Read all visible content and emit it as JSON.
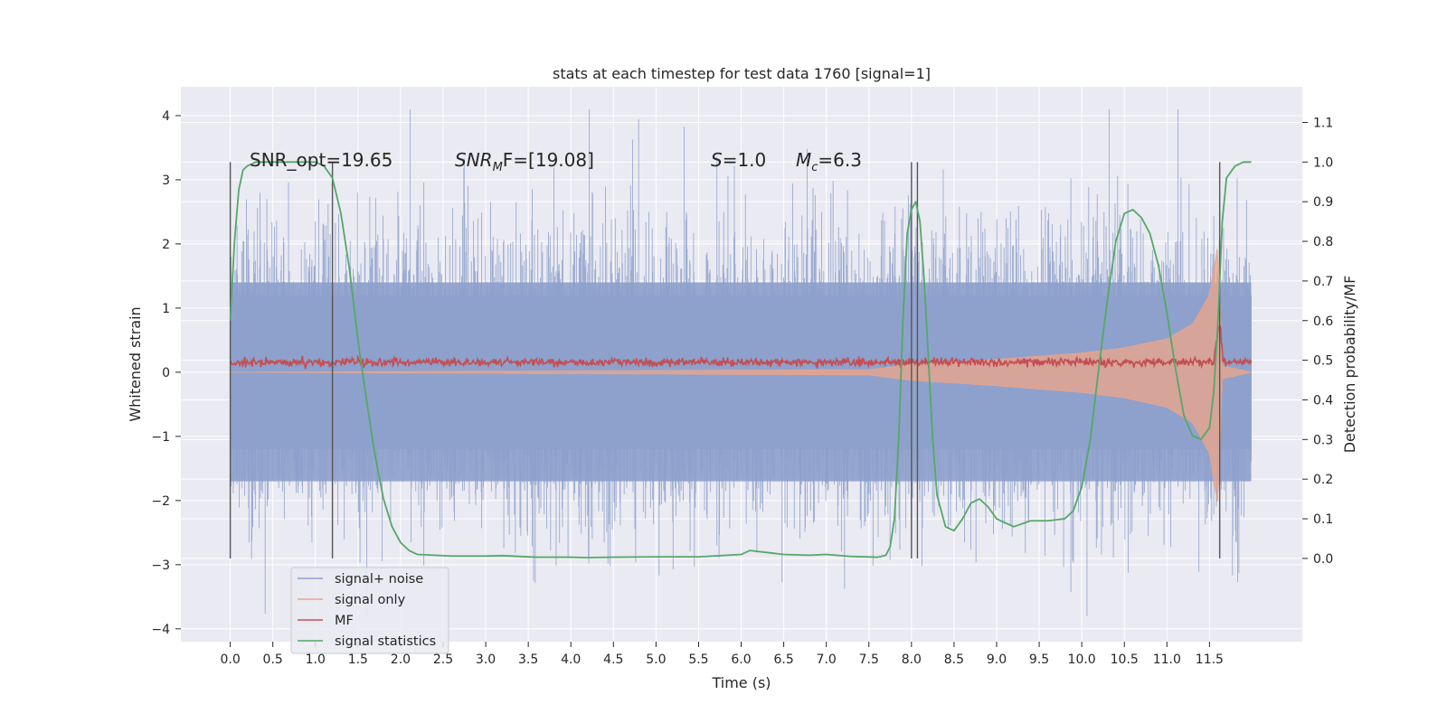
{
  "chart_data": {
    "type": "line",
    "title": "stats at each timestep for test data 1760 [signal=1]",
    "xlabel": "Time (s)",
    "ylabel_left": "Whitened strain",
    "ylabel_right": "Detection probability/MF",
    "xlim": [
      -0.58,
      12.59
    ],
    "ylim_left": [
      -4.2,
      4.45
    ],
    "ylim_right": [
      -0.21,
      1.19
    ],
    "x_ticks": [
      "0.0",
      "0.5",
      "1.0",
      "1.5",
      "2.0",
      "2.5",
      "3.0",
      "3.5",
      "4.0",
      "4.5",
      "5.0",
      "5.5",
      "6.0",
      "6.5",
      "7.0",
      "7.5",
      "8.0",
      "8.5",
      "9.0",
      "9.5",
      "10.0",
      "10.5",
      "11.0",
      "11.5"
    ],
    "y_ticks_left": [
      "4",
      "3",
      "2",
      "1",
      "0",
      "−1",
      "−2",
      "−3",
      "−4"
    ],
    "y_ticks_right": [
      "1.1",
      "1.0",
      "0.9",
      "0.8",
      "0.7",
      "0.6",
      "0.5",
      "0.4",
      "0.3",
      "0.2",
      "0.1",
      "0.0"
    ],
    "grid": true,
    "legend_position": "lower-left",
    "annotations": {
      "snr_opt": "SNR_opt=19.65",
      "snr_mf_sym": "SNR",
      "snr_mf_sub": "M",
      "snr_mf_rest": "F=[19.08]",
      "s_sym": "S",
      "s_val": "=1.0",
      "mc_sym": "M",
      "mc_sub": "c",
      "mc_val": "=6.3"
    },
    "vertical_lines_x": [
      0.0,
      1.2,
      8.0,
      8.07,
      11.62
    ],
    "series": [
      {
        "name": "signal+ noise",
        "color": "#8da0cb",
        "envelope_x": [
          0.0,
          2.0,
          4.0,
          6.0,
          8.0,
          10.0,
          11.99
        ],
        "envelope_y": [
          1.5,
          1.5,
          1.5,
          1.5,
          1.5,
          1.5,
          1.5
        ]
      },
      {
        "name": "signal only",
        "color": "#e8a58c",
        "x": [
          0.0,
          7.5,
          8.0,
          9.0,
          10.0,
          10.5,
          11.0,
          11.3,
          11.5,
          11.6,
          11.65,
          11.99
        ],
        "amplitude": [
          0.0,
          0.04,
          0.12,
          0.2,
          0.3,
          0.38,
          0.52,
          0.75,
          1.2,
          2.0,
          0.1,
          0.0
        ]
      },
      {
        "name": "MF",
        "color": "#c44e52",
        "x": [
          0.0,
          11.55,
          11.62,
          11.66,
          11.7,
          11.99
        ],
        "y": [
          0.495,
          0.495,
          0.6,
          0.5,
          0.495,
          0.495
        ]
      },
      {
        "name": "signal statistics",
        "color": "#55a868",
        "x": [
          0.0,
          0.05,
          0.1,
          0.15,
          0.2,
          0.3,
          0.5,
          0.7,
          0.9,
          1.0,
          1.1,
          1.2,
          1.3,
          1.4,
          1.5,
          1.6,
          1.7,
          1.8,
          1.9,
          2.0,
          2.1,
          2.2,
          2.4,
          2.6,
          2.8,
          3.0,
          3.2,
          3.4,
          3.6,
          3.8,
          4.0,
          4.2,
          4.5,
          5.0,
          5.5,
          6.0,
          6.1,
          6.3,
          6.5,
          6.8,
          7.0,
          7.3,
          7.6,
          7.7,
          7.75,
          7.8,
          7.85,
          7.9,
          7.95,
          8.0,
          8.05,
          8.1,
          8.15,
          8.2,
          8.25,
          8.3,
          8.4,
          8.5,
          8.6,
          8.7,
          8.8,
          8.9,
          9.0,
          9.2,
          9.4,
          9.6,
          9.8,
          9.9,
          10.0,
          10.1,
          10.2,
          10.3,
          10.4,
          10.5,
          10.6,
          10.7,
          10.8,
          10.9,
          11.0,
          11.1,
          11.2,
          11.3,
          11.4,
          11.5,
          11.55,
          11.6,
          11.65,
          11.7,
          11.8,
          11.9,
          11.99
        ],
        "y": [
          0.6,
          0.8,
          0.93,
          0.98,
          0.99,
          1.0,
          1.0,
          1.0,
          1.0,
          1.0,
          0.99,
          0.96,
          0.87,
          0.73,
          0.55,
          0.4,
          0.26,
          0.15,
          0.08,
          0.04,
          0.02,
          0.01,
          0.008,
          0.006,
          0.006,
          0.006,
          0.007,
          0.005,
          0.003,
          0.003,
          0.003,
          0.002,
          0.003,
          0.004,
          0.004,
          0.01,
          0.02,
          0.015,
          0.01,
          0.008,
          0.01,
          0.005,
          0.003,
          0.008,
          0.03,
          0.1,
          0.3,
          0.6,
          0.82,
          0.88,
          0.9,
          0.85,
          0.7,
          0.5,
          0.3,
          0.16,
          0.08,
          0.07,
          0.1,
          0.14,
          0.15,
          0.13,
          0.1,
          0.08,
          0.095,
          0.095,
          0.1,
          0.12,
          0.18,
          0.3,
          0.48,
          0.65,
          0.8,
          0.87,
          0.88,
          0.86,
          0.82,
          0.74,
          0.62,
          0.48,
          0.36,
          0.31,
          0.3,
          0.33,
          0.42,
          0.6,
          0.85,
          0.96,
          0.99,
          1.0,
          1.0
        ]
      }
    ]
  }
}
